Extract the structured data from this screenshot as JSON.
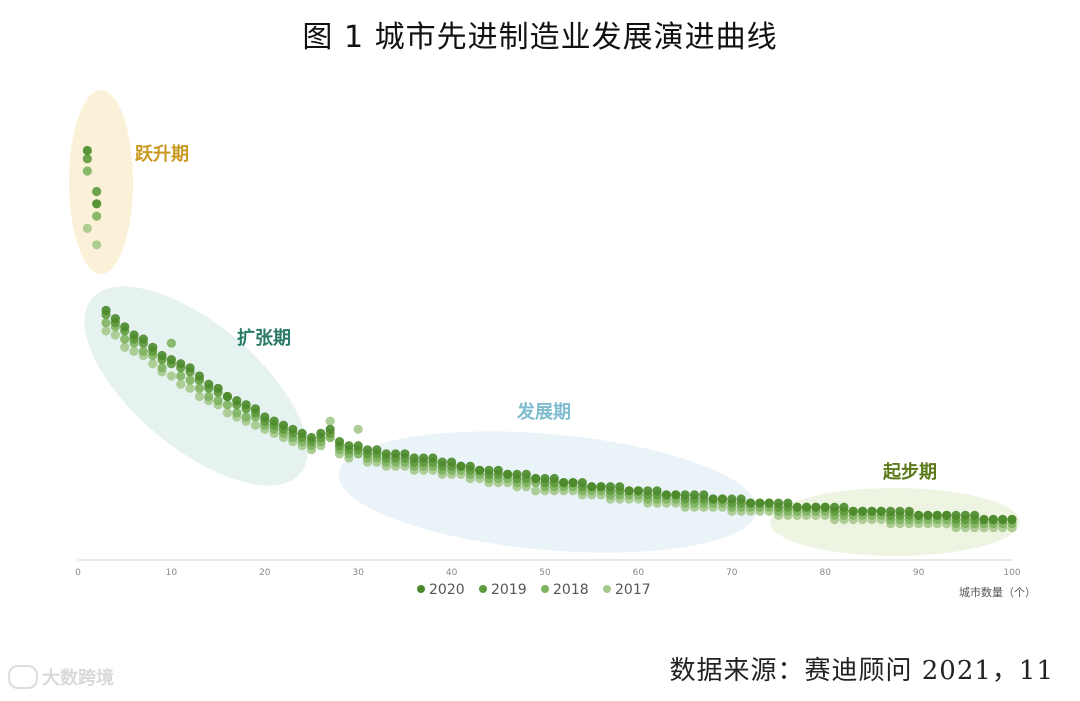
{
  "title": "图 1  城市先进制造业发展演进曲线",
  "source": "数据来源：赛迪顾问 2021，11",
  "watermark": "大数跨境",
  "colors": {
    "2020": "#4a8a2a",
    "2019": "#5f9a3c",
    "2018": "#7db35e",
    "2017": "#a5c98c",
    "phase_jump": "#c99a22",
    "phase_expand": "#2a7a6a",
    "phase_develop": "#7fbcd0",
    "phase_start": "#5a7a1a"
  },
  "chart_data": {
    "type": "scatter",
    "xlabel": "城市数量（个）",
    "ylabel": "",
    "xlim": [
      0,
      100
    ],
    "ylim": [
      0,
      100
    ],
    "xticks": [
      0,
      10,
      20,
      30,
      40,
      50,
      60,
      70,
      80,
      90,
      100
    ],
    "grid": false,
    "legend_position": "bottom",
    "phases": [
      {
        "label": "跃升期",
        "x_range": [
          0,
          5
        ]
      },
      {
        "label": "扩张期",
        "x_range": [
          2,
          24
        ]
      },
      {
        "label": "发展期",
        "x_range": [
          28,
          72
        ]
      },
      {
        "label": "起步期",
        "x_range": [
          75,
          100
        ]
      }
    ],
    "series": [
      {
        "name": "2020",
        "x": [
          1,
          2,
          3,
          4,
          5,
          6,
          7,
          8,
          9,
          10,
          11,
          12,
          13,
          14,
          15,
          16,
          17,
          18,
          19,
          20,
          21,
          22,
          23,
          24,
          25,
          26,
          27,
          28,
          29,
          30,
          31,
          32,
          33,
          34,
          35,
          36,
          37,
          38,
          39,
          40,
          41,
          42,
          43,
          44,
          45,
          46,
          47,
          48,
          49,
          50,
          51,
          52,
          53,
          54,
          55,
          56,
          57,
          58,
          59,
          60,
          61,
          62,
          63,
          64,
          65,
          66,
          67,
          68,
          69,
          70,
          71,
          72,
          73,
          74,
          75,
          76,
          77,
          78,
          79,
          80,
          81,
          82,
          83,
          84,
          85,
          86,
          87,
          88,
          89,
          90,
          91,
          92,
          93,
          94,
          95,
          96,
          97,
          98,
          99,
          100
        ],
        "y": [
          95,
          82,
          56,
          54,
          52,
          50,
          49,
          47,
          45,
          44,
          43,
          42,
          40,
          38,
          37,
          35,
          34,
          33,
          32,
          30,
          29,
          28,
          27,
          26,
          25,
          26,
          27,
          24,
          23,
          23,
          22,
          22,
          21,
          21,
          21,
          20,
          20,
          20,
          19,
          19,
          18,
          18,
          17,
          17,
          17,
          16,
          16,
          16,
          15,
          15,
          15,
          14,
          14,
          14,
          13,
          13,
          13,
          13,
          12,
          12,
          12,
          12,
          11,
          11,
          11,
          11,
          11,
          10,
          10,
          10,
          10,
          9,
          9,
          9,
          9,
          9,
          8,
          8,
          8,
          8,
          8,
          8,
          7,
          7,
          7,
          7,
          7,
          7,
          7,
          6,
          6,
          6,
          6,
          6,
          6,
          6,
          5,
          5,
          5,
          5
        ]
      },
      {
        "name": "2019",
        "x": [
          1,
          2,
          3,
          4,
          5,
          6,
          7,
          8,
          9,
          10,
          11,
          12,
          13,
          14,
          15,
          16,
          17,
          18,
          19,
          20,
          21,
          22,
          23,
          24,
          25,
          26,
          27,
          28,
          29,
          30,
          31,
          32,
          33,
          34,
          35,
          36,
          37,
          38,
          39,
          40,
          41,
          42,
          43,
          44,
          45,
          46,
          47,
          48,
          49,
          50,
          51,
          52,
          53,
          54,
          55,
          56,
          57,
          58,
          59,
          60,
          61,
          62,
          63,
          64,
          65,
          66,
          67,
          68,
          69,
          70,
          71,
          72,
          73,
          74,
          75,
          76,
          77,
          78,
          79,
          80,
          81,
          82,
          83,
          84,
          85,
          86,
          87,
          88,
          89,
          90,
          91,
          92,
          93,
          94,
          95,
          96,
          97,
          98,
          99,
          100
        ],
        "y": [
          93,
          85,
          55,
          53,
          51,
          49,
          48,
          46,
          44,
          43,
          42,
          41,
          39,
          37,
          36,
          35,
          33,
          32,
          31,
          29,
          28,
          27,
          26,
          25,
          24,
          25,
          26,
          23,
          22,
          22,
          21,
          21,
          20,
          20,
          20,
          19,
          19,
          19,
          18,
          18,
          18,
          17,
          17,
          16,
          16,
          16,
          15,
          15,
          15,
          14,
          14,
          14,
          14,
          13,
          13,
          13,
          12,
          12,
          12,
          12,
          11,
          11,
          11,
          11,
          10,
          10,
          10,
          10,
          10,
          9,
          9,
          9,
          9,
          9,
          8,
          8,
          8,
          8,
          8,
          8,
          7,
          7,
          7,
          7,
          7,
          7,
          6,
          6,
          6,
          6,
          6,
          6,
          6,
          5,
          5,
          5,
          5,
          5,
          5,
          5
        ]
      },
      {
        "name": "2018",
        "x": [
          1,
          2,
          3,
          4,
          5,
          6,
          7,
          8,
          9,
          10,
          11,
          12,
          13,
          14,
          15,
          16,
          17,
          18,
          19,
          20,
          21,
          22,
          23,
          24,
          25,
          26,
          27,
          28,
          29,
          30,
          31,
          32,
          33,
          34,
          35,
          36,
          37,
          38,
          39,
          40,
          41,
          42,
          43,
          44,
          45,
          46,
          47,
          48,
          49,
          50,
          51,
          52,
          53,
          54,
          55,
          56,
          57,
          58,
          59,
          60,
          61,
          62,
          63,
          64,
          65,
          66,
          67,
          68,
          69,
          70,
          71,
          72,
          73,
          74,
          75,
          76,
          77,
          78,
          79,
          80,
          81,
          82,
          83,
          84,
          85,
          86,
          87,
          88,
          89,
          90,
          91,
          92,
          93,
          94,
          95,
          96,
          97,
          98,
          99,
          100
        ],
        "y": [
          90,
          79,
          53,
          52,
          49,
          48,
          46,
          45,
          42,
          48,
          40,
          39,
          37,
          35,
          34,
          33,
          31,
          30,
          30,
          28,
          27,
          26,
          25,
          24,
          23,
          24,
          25,
          22,
          21,
          21,
          20,
          20,
          19,
          19,
          19,
          18,
          18,
          18,
          17,
          17,
          17,
          16,
          16,
          15,
          15,
          15,
          14,
          14,
          14,
          13,
          13,
          13,
          13,
          12,
          12,
          12,
          11,
          11,
          11,
          11,
          10,
          10,
          10,
          10,
          9,
          9,
          9,
          9,
          9,
          8,
          8,
          8,
          8,
          8,
          7,
          7,
          7,
          7,
          7,
          7,
          6,
          6,
          6,
          6,
          6,
          6,
          5,
          5,
          5,
          5,
          5,
          5,
          5,
          4,
          4,
          4,
          4,
          4,
          4,
          4
        ]
      },
      {
        "name": "2017",
        "x": [
          1,
          2,
          3,
          4,
          5,
          6,
          7,
          8,
          9,
          10,
          11,
          12,
          13,
          14,
          15,
          16,
          17,
          18,
          19,
          20,
          21,
          22,
          23,
          24,
          25,
          26,
          27,
          28,
          29,
          30,
          31,
          32,
          33,
          34,
          35,
          36,
          37,
          38,
          39,
          40,
          41,
          42,
          43,
          44,
          45,
          46,
          47,
          48,
          49,
          50,
          51,
          52,
          53,
          54,
          55,
          56,
          57,
          58,
          59,
          60,
          61,
          62,
          63,
          64,
          65,
          66,
          67,
          68,
          69,
          70,
          71,
          72,
          73,
          74,
          75,
          76,
          77,
          78,
          79,
          80,
          81,
          82,
          83,
          84,
          85,
          86,
          87,
          88,
          89,
          90,
          91,
          92,
          93,
          94,
          95,
          96,
          97,
          98,
          99,
          100
        ],
        "y": [
          76,
          72,
          51,
          50,
          47,
          46,
          45,
          43,
          41,
          40,
          38,
          37,
          35,
          34,
          33,
          31,
          30,
          29,
          28,
          27,
          26,
          25,
          24,
          23,
          22,
          23,
          29,
          21,
          20,
          27,
          19,
          19,
          18,
          18,
          18,
          17,
          17,
          17,
          16,
          16,
          16,
          15,
          15,
          14,
          14,
          14,
          13,
          13,
          12,
          12,
          12,
          12,
          12,
          11,
          11,
          11,
          10,
          10,
          10,
          10,
          9,
          9,
          9,
          9,
          8,
          8,
          8,
          8,
          8,
          7,
          7,
          7,
          7,
          7,
          6,
          6,
          6,
          6,
          6,
          6,
          5,
          5,
          5,
          5,
          5,
          5,
          4,
          4,
          4,
          4,
          4,
          4,
          4,
          3,
          3,
          3,
          3,
          3,
          3,
          3
        ]
      }
    ]
  }
}
